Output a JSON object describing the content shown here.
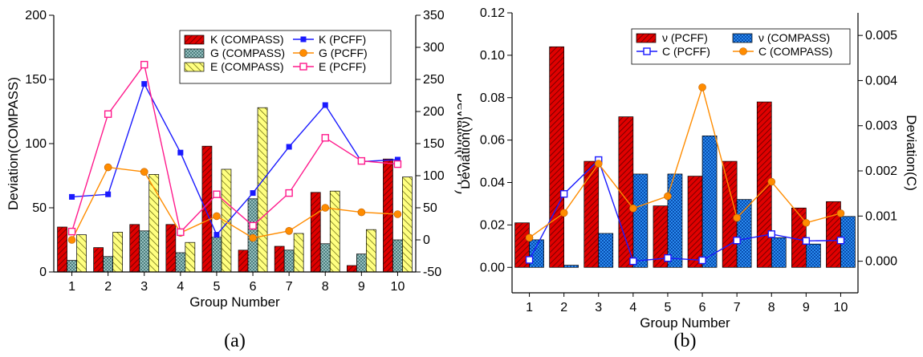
{
  "colors": {
    "red": "#e00000",
    "teal": "#6fa8a8",
    "yellow": "#ffff80",
    "blue": "#1a1aff",
    "orange": "#ff8c00",
    "pink": "#ff1a8c",
    "lightblue": "#3399ff"
  },
  "chart_data": [
    {
      "type": "bar",
      "caption": "(a)",
      "categories": [
        "1",
        "2",
        "3",
        "4",
        "5",
        "6",
        "7",
        "8",
        "9",
        "10"
      ],
      "xlabel": "Group Number",
      "ylabel": "Deviation(COMPASS)",
      "y2label": "Deviation(PCFF)",
      "ylim": [
        0,
        200
      ],
      "y2lim": [
        -50,
        350
      ],
      "yticks": [
        "0",
        "50",
        "100",
        "150",
        "200"
      ],
      "y2ticks": [
        "-50",
        "0",
        "50",
        "100",
        "150",
        "200",
        "250",
        "300",
        "350"
      ],
      "grid": false,
      "legend_position": "top-right",
      "bar_series": [
        {
          "name": "K (COMPASS)",
          "color": "red",
          "pattern": "hatch-red",
          "values": [
            35,
            19,
            37,
            37,
            98,
            17,
            20,
            62,
            5,
            88
          ]
        },
        {
          "name": "G (COMPASS)",
          "color": "teal",
          "pattern": "cross-teal",
          "values": [
            9,
            12,
            32,
            15,
            27,
            57,
            17,
            22,
            14,
            25
          ]
        },
        {
          "name": "E (COMPASS)",
          "color": "yellow",
          "pattern": "hatch-yellow",
          "values": [
            29,
            31,
            76,
            23,
            80,
            128,
            30,
            63,
            33,
            74
          ]
        }
      ],
      "line_series": [
        {
          "name": "K (PCFF)",
          "color": "blue",
          "marker": "filled-square",
          "values": [
            67,
            71,
            243,
            136,
            8,
            73,
            145,
            210,
            122,
            125
          ]
        },
        {
          "name": "G (PCFF)",
          "color": "orange",
          "marker": "filled-circle",
          "values": [
            0,
            113,
            106,
            11,
            37,
            3,
            14,
            50,
            43,
            40
          ]
        },
        {
          "name": "E (PCFF)",
          "color": "pink",
          "marker": "open-square",
          "values": [
            13,
            196,
            273,
            12,
            71,
            22,
            73,
            159,
            123,
            118
          ]
        }
      ]
    },
    {
      "type": "bar",
      "caption": "(b)",
      "categories": [
        "1",
        "2",
        "3",
        "4",
        "5",
        "6",
        "7",
        "8",
        "9",
        "10"
      ],
      "xlabel": "Group Number",
      "ylabel": "Deviation(ν)",
      "y2label": "Deviation(C)",
      "ylim": [
        -0.012,
        0.12
      ],
      "y2lim": [
        -0.0007,
        0.0055
      ],
      "yticks": [
        "0.00",
        "0.02",
        "0.04",
        "0.06",
        "0.08",
        "0.10",
        "0.12"
      ],
      "y2ticks": [
        "0.000",
        "0.001",
        "0.002",
        "0.003",
        "0.004",
        "0.005"
      ],
      "grid": false,
      "legend_position": "top-right",
      "bar_series": [
        {
          "name": "ν (PCFF)",
          "color": "red",
          "pattern": "hatch-red",
          "values": [
            0.021,
            0.104,
            0.05,
            0.071,
            0.029,
            0.043,
            0.05,
            0.078,
            0.028,
            0.031
          ]
        },
        {
          "name": "ν (COMPASS)",
          "color": "lightblue",
          "pattern": "cross-blue",
          "values": [
            0.013,
            0.001,
            0.016,
            0.044,
            0.044,
            0.062,
            0.032,
            0.014,
            0.011,
            0.024
          ]
        }
      ],
      "line_series": [
        {
          "name": "C (PCFF)",
          "color": "blue",
          "marker": "open-square",
          "values": [
            3e-05,
            0.00149,
            0.00224,
            0.0,
            7e-05,
            2e-05,
            0.00046,
            0.0006,
            0.00045,
            0.00046
          ]
        },
        {
          "name": "C (COMPASS)",
          "color": "orange",
          "marker": "filled-circle",
          "values": [
            0.00052,
            0.00107,
            0.00216,
            0.00117,
            0.00144,
            0.00385,
            0.00096,
            0.00176,
            0.00085,
            0.00106
          ]
        }
      ]
    }
  ]
}
